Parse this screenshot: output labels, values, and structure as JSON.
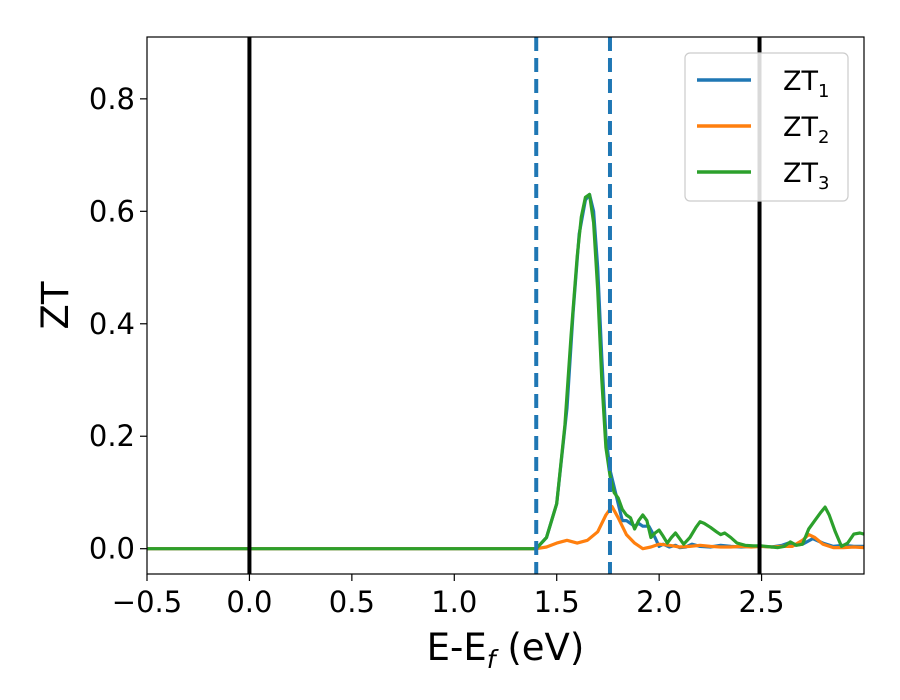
{
  "chart_data": {
    "type": "line",
    "xlabel": "E-E",
    "xlabel_sub": "f",
    "xlabel_unit": " (eV)",
    "ylabel": "ZT",
    "xlim": [
      -0.5,
      3.0
    ],
    "ylim": [
      -0.045,
      0.91
    ],
    "x_ticks": [
      -0.5,
      0.0,
      0.5,
      1.0,
      1.5,
      2.0,
      2.5
    ],
    "x_tick_labels": [
      "−0.5",
      "0.0",
      "0.5",
      "1.0",
      "1.5",
      "2.0",
      "2.5"
    ],
    "y_ticks": [
      0.0,
      0.2,
      0.4,
      0.6,
      0.8
    ],
    "y_tick_labels": [
      "0.0",
      "0.2",
      "0.4",
      "0.6",
      "0.8"
    ],
    "grid": false,
    "legend_position": "top-right",
    "vlines": [
      {
        "x": 0.0,
        "color": "#000000",
        "style": "solid"
      },
      {
        "x": 2.49,
        "color": "#000000",
        "style": "solid"
      },
      {
        "x": 1.4,
        "color": "#1f77b4",
        "style": "dashed"
      },
      {
        "x": 1.76,
        "color": "#1f77b4",
        "style": "dashed"
      }
    ],
    "series": [
      {
        "name": "ZT",
        "sub": "1",
        "color": "#1f77b4",
        "x": [
          -0.5,
          1.4,
          1.45,
          1.5,
          1.55,
          1.58,
          1.61,
          1.64,
          1.66,
          1.68,
          1.7,
          1.72,
          1.74,
          1.76,
          1.78,
          1.8,
          1.82,
          1.84,
          1.86,
          1.88,
          1.9,
          1.92,
          1.95,
          1.98,
          2.0,
          2.02,
          2.05,
          2.08,
          2.1,
          2.13,
          2.16,
          2.2,
          2.25,
          2.3,
          2.35,
          2.4,
          2.45,
          2.5,
          2.55,
          2.6,
          2.63,
          2.66,
          2.7,
          2.75,
          2.8,
          2.85,
          2.9,
          2.95,
          3.0
        ],
        "y": [
          0.0,
          0.0,
          0.02,
          0.08,
          0.25,
          0.42,
          0.56,
          0.62,
          0.63,
          0.6,
          0.5,
          0.34,
          0.2,
          0.14,
          0.11,
          0.08,
          0.05,
          0.05,
          0.045,
          0.04,
          0.045,
          0.04,
          0.04,
          0.02,
          0.004,
          0.008,
          0.003,
          0.006,
          0.002,
          0.003,
          0.008,
          0.004,
          0.003,
          0.006,
          0.004,
          0.003,
          0.004,
          0.004,
          0.003,
          0.006,
          0.01,
          0.006,
          0.008,
          0.018,
          0.01,
          0.004,
          0.006,
          0.004,
          0.004
        ]
      },
      {
        "name": "ZT",
        "sub": "2",
        "color": "#ff7f0e",
        "x": [
          -0.5,
          1.4,
          1.45,
          1.5,
          1.55,
          1.6,
          1.65,
          1.7,
          1.74,
          1.77,
          1.8,
          1.84,
          1.88,
          1.92,
          1.96,
          2.0,
          2.05,
          2.1,
          2.15,
          2.2,
          2.25,
          2.3,
          2.35,
          2.4,
          2.45,
          2.5,
          2.55,
          2.6,
          2.65,
          2.7,
          2.73,
          2.76,
          2.8,
          2.85,
          2.9,
          2.95,
          3.0
        ],
        "y": [
          0.0,
          0.0,
          0.003,
          0.01,
          0.015,
          0.01,
          0.015,
          0.03,
          0.06,
          0.075,
          0.055,
          0.025,
          0.01,
          0.0,
          0.003,
          0.008,
          0.006,
          0.003,
          0.004,
          0.006,
          0.004,
          0.003,
          0.003,
          0.004,
          0.003,
          0.004,
          0.003,
          0.004,
          0.004,
          0.015,
          0.025,
          0.02,
          0.008,
          0.002,
          0.002,
          0.003,
          0.002
        ]
      },
      {
        "name": "ZT",
        "sub": "3",
        "color": "#2ca02c",
        "x": [
          -0.5,
          1.4,
          1.45,
          1.5,
          1.54,
          1.57,
          1.6,
          1.62,
          1.64,
          1.66,
          1.68,
          1.7,
          1.72,
          1.74,
          1.76,
          1.78,
          1.8,
          1.82,
          1.84,
          1.86,
          1.88,
          1.9,
          1.92,
          1.94,
          1.96,
          1.98,
          2.0,
          2.02,
          2.04,
          2.06,
          2.08,
          2.1,
          2.12,
          2.15,
          2.18,
          2.2,
          2.22,
          2.25,
          2.28,
          2.3,
          2.32,
          2.35,
          2.38,
          2.42,
          2.46,
          2.5,
          2.55,
          2.58,
          2.61,
          2.64,
          2.67,
          2.7,
          2.73,
          2.76,
          2.79,
          2.81,
          2.83,
          2.86,
          2.89,
          2.92,
          2.95,
          2.98,
          3.0
        ],
        "y": [
          0.0,
          0.0,
          0.02,
          0.08,
          0.22,
          0.38,
          0.52,
          0.59,
          0.625,
          0.63,
          0.58,
          0.46,
          0.3,
          0.18,
          0.13,
          0.1,
          0.09,
          0.07,
          0.06,
          0.055,
          0.035,
          0.05,
          0.06,
          0.05,
          0.02,
          0.028,
          0.033,
          0.022,
          0.01,
          0.02,
          0.028,
          0.018,
          0.008,
          0.02,
          0.038,
          0.048,
          0.045,
          0.038,
          0.03,
          0.025,
          0.028,
          0.02,
          0.01,
          0.006,
          0.005,
          0.005,
          0.003,
          0.002,
          0.004,
          0.012,
          0.006,
          0.008,
          0.035,
          0.05,
          0.065,
          0.074,
          0.06,
          0.03,
          0.004,
          0.01,
          0.026,
          0.028,
          0.026
        ]
      }
    ]
  }
}
